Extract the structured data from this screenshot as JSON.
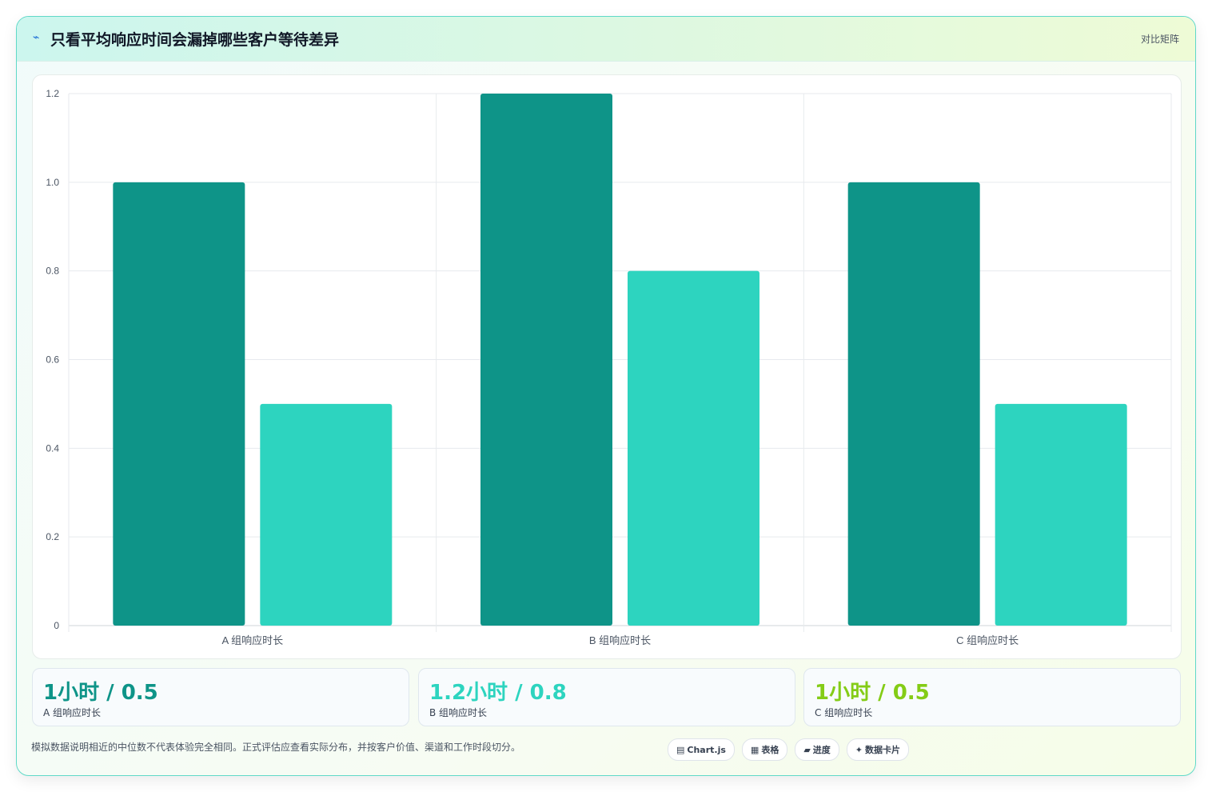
{
  "header": {
    "icon": "pulse-icon",
    "icon_glyph": "⌁",
    "title": "只看平均响应时间会漏掉哪些客户等待差异",
    "right_label": "对比矩阵"
  },
  "colors": {
    "series_dark": "#0e9488",
    "series_light": "#2dd4bf",
    "stat_a": "#0e9488",
    "stat_b": "#2dd4bf",
    "stat_c": "#84cc16"
  },
  "chart_data": {
    "type": "bar",
    "categories": [
      "A 组响应时长",
      "B 组响应时长",
      "C 组响应时长"
    ],
    "series": [
      {
        "values": [
          1,
          1.2,
          1
        ]
      },
      {
        "values": [
          0.5,
          0.8,
          0.5
        ]
      }
    ],
    "ylim": [
      0,
      1.2
    ],
    "yticks": [
      "0",
      "0.2",
      "0.4",
      "0.6",
      "0.8",
      "1.0",
      "1.2"
    ],
    "grid": true
  },
  "stats": [
    {
      "value": "1小时 / 0.5",
      "label": "A 组响应时长"
    },
    {
      "value": "1.2小时 / 0.8",
      "label": "B 组响应时长"
    },
    {
      "value": "1小时 / 0.5",
      "label": "C 组响应时长"
    }
  ],
  "footnote": "模拟数据说明相近的中位数不代表体验完全相同。正式评估应查看实际分布，并按客户价值、渠道和工作时段切分。",
  "badges": [
    {
      "icon": "chart-icon",
      "glyph": "▤",
      "label": "Chart.js"
    },
    {
      "icon": "table-icon",
      "glyph": "▦",
      "label": "表格"
    },
    {
      "icon": "progress-icon",
      "glyph": "▰",
      "label": "进度"
    },
    {
      "icon": "sparkle-icon",
      "glyph": "✦",
      "label": "数据卡片"
    }
  ]
}
